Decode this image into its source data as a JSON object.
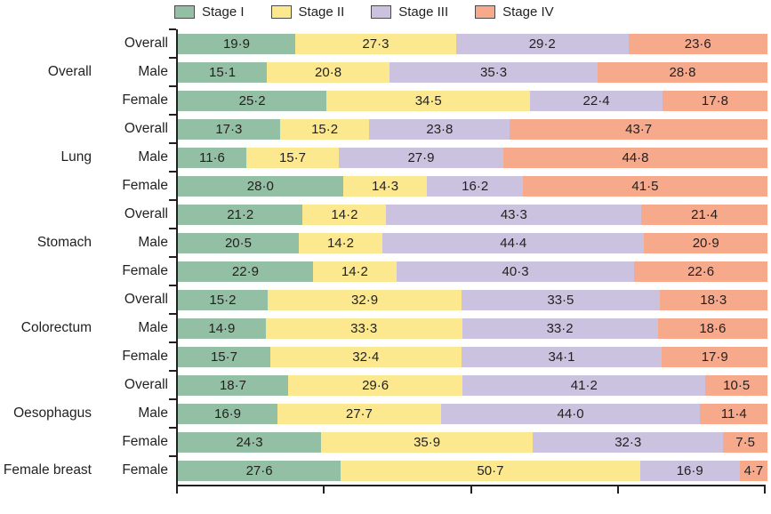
{
  "chart_data": {
    "type": "bar",
    "orientation": "horizontal",
    "stacked": true,
    "unit": "percent",
    "xlim": [
      0,
      100
    ],
    "x_ticks": [
      0,
      25,
      50,
      75,
      100
    ],
    "grid": false,
    "legend_position": "top",
    "legend": [
      {
        "label": "Stage I",
        "color": "#93bfa4"
      },
      {
        "label": "Stage II",
        "color": "#fce98f"
      },
      {
        "label": "Stage III",
        "color": "#cbc2df"
      },
      {
        "label": "Stage IV",
        "color": "#f6a98b"
      }
    ],
    "groups": [
      {
        "label": "Overall",
        "rows": [
          {
            "label": "Overall",
            "values": [
              19.9,
              27.3,
              29.2,
              23.6
            ],
            "display": [
              "19·9",
              "27·3",
              "29·2",
              "23·6"
            ]
          },
          {
            "label": "Male",
            "values": [
              15.1,
              20.8,
              35.3,
              28.8
            ],
            "display": [
              "15·1",
              "20·8",
              "35·3",
              "28·8"
            ]
          },
          {
            "label": "Female",
            "values": [
              25.2,
              34.5,
              22.4,
              17.8
            ],
            "display": [
              "25·2",
              "34·5",
              "22·4",
              "17·8"
            ]
          }
        ]
      },
      {
        "label": "Lung",
        "rows": [
          {
            "label": "Overall",
            "values": [
              17.3,
              15.2,
              23.8,
              43.7
            ],
            "display": [
              "17·3",
              "15·2",
              "23·8",
              "43·7"
            ]
          },
          {
            "label": "Male",
            "values": [
              11.6,
              15.7,
              27.9,
              44.8
            ],
            "display": [
              "11·6",
              "15·7",
              "27·9",
              "44·8"
            ]
          },
          {
            "label": "Female",
            "values": [
              28.0,
              14.3,
              16.2,
              41.5
            ],
            "display": [
              "28·0",
              "14·3",
              "16·2",
              "41·5"
            ]
          }
        ]
      },
      {
        "label": "Stomach",
        "rows": [
          {
            "label": "Overall",
            "values": [
              21.2,
              14.2,
              43.3,
              21.4
            ],
            "display": [
              "21·2",
              "14·2",
              "43·3",
              "21·4"
            ]
          },
          {
            "label": "Male",
            "values": [
              20.5,
              14.2,
              44.4,
              20.9
            ],
            "display": [
              "20·5",
              "14·2",
              "44·4",
              "20·9"
            ]
          },
          {
            "label": "Female",
            "values": [
              22.9,
              14.2,
              40.3,
              22.6
            ],
            "display": [
              "22·9",
              "14·2",
              "40·3",
              "22·6"
            ]
          }
        ]
      },
      {
        "label": "Colorectum",
        "rows": [
          {
            "label": "Overall",
            "values": [
              15.2,
              32.9,
              33.5,
              18.3
            ],
            "display": [
              "15·2",
              "32·9",
              "33·5",
              "18·3"
            ]
          },
          {
            "label": "Male",
            "values": [
              14.9,
              33.3,
              33.2,
              18.6
            ],
            "display": [
              "14·9",
              "33·3",
              "33·2",
              "18·6"
            ]
          },
          {
            "label": "Female",
            "values": [
              15.7,
              32.4,
              34.1,
              17.9
            ],
            "display": [
              "15·7",
              "32·4",
              "34·1",
              "17·9"
            ]
          }
        ]
      },
      {
        "label": "Oesophagus",
        "rows": [
          {
            "label": "Overall",
            "values": [
              18.7,
              29.6,
              41.2,
              10.5
            ],
            "display": [
              "18·7",
              "29·6",
              "41·2",
              "10·5"
            ]
          },
          {
            "label": "Male",
            "values": [
              16.9,
              27.7,
              44.0,
              11.4
            ],
            "display": [
              "16·9",
              "27·7",
              "44·0",
              "11·4"
            ]
          },
          {
            "label": "Female",
            "values": [
              24.3,
              35.9,
              32.3,
              7.5
            ],
            "display": [
              "24·3",
              "35·9",
              "32·3",
              "7·5"
            ]
          }
        ]
      },
      {
        "label": "Female breast",
        "rows": [
          {
            "label": "Female",
            "values": [
              27.6,
              50.7,
              16.9,
              4.7
            ],
            "display": [
              "27·6",
              "50·7",
              "16·9",
              "4·7"
            ]
          }
        ]
      }
    ],
    "colors": {
      "axis": "#231f20",
      "value_text": "#231f20"
    }
  }
}
